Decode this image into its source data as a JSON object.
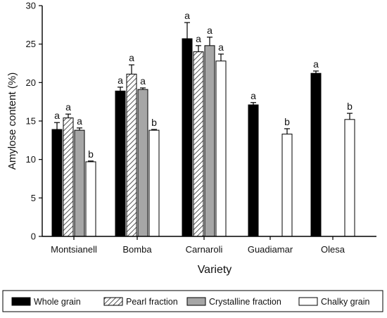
{
  "chart_data": {
    "type": "bar",
    "xlabel": "Variety",
    "ylabel": "Amylose content (%)",
    "ylim": [
      0,
      30
    ],
    "yticks": [
      0,
      5,
      10,
      15,
      20,
      25,
      30
    ],
    "categories": [
      "Montsianell",
      "Bomba",
      "Carnaroli",
      "Guadiamar",
      "Olesa"
    ],
    "legend_position": "bottom",
    "series": [
      {
        "name": "Whole grain",
        "fill": "#000000",
        "pattern": "solid",
        "values": [
          13.9,
          18.9,
          25.7,
          17.1,
          21.2
        ],
        "errors": [
          0.9,
          0.5,
          2.1,
          0.3,
          0.3
        ],
        "labels": [
          "a",
          "a",
          "a",
          "a",
          "a"
        ]
      },
      {
        "name": "Pearl fraction",
        "fill": "#ffffff",
        "pattern": "hatch",
        "values": [
          15.4,
          21.1,
          24.0,
          null,
          null
        ],
        "errors": [
          0.5,
          1.2,
          0.8,
          null,
          null
        ],
        "labels": [
          "a",
          "a",
          "a",
          "",
          ""
        ]
      },
      {
        "name": "Crystalline fraction",
        "fill": "#a6a6a6",
        "pattern": "solid",
        "values": [
          13.8,
          19.1,
          24.8,
          null,
          null
        ],
        "errors": [
          0.3,
          0.2,
          1.1,
          null,
          null
        ],
        "labels": [
          "a",
          "a",
          "a",
          "",
          ""
        ]
      },
      {
        "name": "Chalky grain",
        "fill": "#ffffff",
        "pattern": "solid",
        "values": [
          9.7,
          13.8,
          22.8,
          13.3,
          15.2
        ],
        "errors": [
          0.1,
          0.1,
          0.9,
          0.7,
          0.8
        ],
        "labels": [
          "b",
          "b",
          "a",
          "b",
          "b"
        ]
      }
    ]
  }
}
